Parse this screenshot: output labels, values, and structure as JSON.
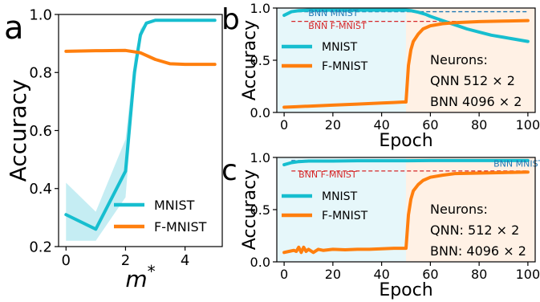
{
  "colors": {
    "mnist": "#17becf",
    "fmnist": "#ff7f0e",
    "bnn_mnist_ref": "#1f77b4",
    "bnn_fmnist_ref": "#d62728",
    "shade_blue": "#e6f7fa",
    "shade_orange": "#fff1e5",
    "band": "#b7e8f0"
  },
  "panels": {
    "a": {
      "letter": "a"
    },
    "b": {
      "letter": "b"
    },
    "c": {
      "letter": "c"
    }
  },
  "chart_data": [
    {
      "id": "a",
      "type": "line",
      "xlabel": "m*",
      "ylabel": "Accuracy",
      "xlim": [
        -0.25,
        5.25
      ],
      "ylim": [
        0.2,
        1.0
      ],
      "xticks": [
        0,
        2,
        4
      ],
      "yticks": [
        0.2,
        0.4,
        0.6,
        0.8,
        1.0
      ],
      "xtick_labels": [
        "0",
        "2",
        "4"
      ],
      "ytick_labels": [
        "0.2",
        "0.4",
        "0.6",
        "0.8",
        "1.0"
      ],
      "legend": [
        "MNIST",
        "F-MNIST"
      ],
      "legend_position": "lower-right",
      "series": [
        {
          "name": "MNIST",
          "color_key": "mnist",
          "x": [
            0,
            1,
            2,
            2.3,
            2.5,
            2.7,
            3,
            4,
            5
          ],
          "y": [
            0.31,
            0.26,
            0.46,
            0.8,
            0.93,
            0.97,
            0.98,
            0.98,
            0.98
          ],
          "band_upper": [
            0.42,
            0.32,
            0.57,
            0.85,
            0.95,
            0.975,
            0.98,
            0.98,
            0.98
          ],
          "band_lower": [
            0.22,
            0.22,
            0.37,
            0.75,
            0.91,
            0.965,
            0.98,
            0.98,
            0.98
          ]
        },
        {
          "name": "F-MNIST",
          "color_key": "fmnist",
          "x": [
            0,
            1,
            2,
            2.5,
            3,
            3.5,
            4,
            5
          ],
          "y": [
            0.873,
            0.875,
            0.876,
            0.868,
            0.845,
            0.83,
            0.828,
            0.828
          ]
        }
      ]
    },
    {
      "id": "b",
      "type": "line",
      "xlabel": "Epoch",
      "ylabel": "Accuracy",
      "xlim": [
        -3,
        103
      ],
      "ylim": [
        0.0,
        1.0
      ],
      "xticks": [
        0,
        20,
        40,
        60,
        80,
        100
      ],
      "yticks": [
        0.0,
        0.5,
        1.0
      ],
      "xtick_labels": [
        "0",
        "20",
        "40",
        "60",
        "80",
        "100"
      ],
      "ytick_labels": [
        "0.0",
        "0.5",
        "1.0"
      ],
      "shade_split": 50,
      "legend": [
        "MNIST",
        "F-MNIST"
      ],
      "legend_position": "center-left",
      "ref_lines": [
        {
          "label": "BNN MNIST",
          "y": 0.965,
          "color_key": "bnn_mnist_ref",
          "label_x": 4,
          "label_y": 0.945
        },
        {
          "label": "BNN F-MNIST",
          "y": 0.872,
          "color_key": "bnn_fmnist_ref",
          "label_x": 4,
          "label_y": 0.825
        }
      ],
      "annotation": [
        "Neurons:",
        "QNN 512 × 2",
        "BNN 4096 × 2"
      ],
      "series": [
        {
          "name": "MNIST",
          "color_key": "mnist",
          "x": [
            0,
            3,
            6,
            10,
            20,
            30,
            40,
            45,
            50,
            52,
            55,
            58,
            60,
            65,
            70,
            75,
            80,
            85,
            90,
            95,
            100
          ],
          "y": [
            0.93,
            0.965,
            0.975,
            0.98,
            0.98,
            0.98,
            0.98,
            0.98,
            0.98,
            0.975,
            0.96,
            0.94,
            0.92,
            0.88,
            0.84,
            0.8,
            0.77,
            0.74,
            0.72,
            0.7,
            0.68
          ]
        },
        {
          "name": "F-MNIST",
          "color_key": "fmnist",
          "x": [
            0,
            5,
            10,
            20,
            30,
            40,
            45,
            49,
            50,
            51,
            52,
            53,
            55,
            57,
            60,
            65,
            70,
            80,
            90,
            100
          ],
          "y": [
            0.05,
            0.055,
            0.06,
            0.07,
            0.08,
            0.09,
            0.095,
            0.1,
            0.1,
            0.45,
            0.6,
            0.68,
            0.75,
            0.8,
            0.83,
            0.85,
            0.86,
            0.87,
            0.875,
            0.88
          ]
        }
      ]
    },
    {
      "id": "c",
      "type": "line",
      "xlabel": "Epoch",
      "ylabel": "Accuracy",
      "xlim": [
        -3,
        103
      ],
      "ylim": [
        0.0,
        1.0
      ],
      "xticks": [
        0,
        20,
        40,
        60,
        80,
        100
      ],
      "yticks": [
        0.0,
        0.5,
        1.0
      ],
      "xtick_labels": [
        "0",
        "20",
        "40",
        "60",
        "80",
        "100"
      ],
      "ytick_labels": [
        "0.0",
        "0.5",
        "1.0"
      ],
      "shade_split": 50,
      "legend": [
        "MNIST",
        "F-MNIST"
      ],
      "legend_position": "center-left",
      "ref_lines": [
        {
          "label": "BNN MNIST",
          "y": 0.97,
          "color_key": "bnn_mnist_ref",
          "label_x": 80,
          "label_y": 0.935
        },
        {
          "label": "BNN F-MNIST",
          "y": 0.87,
          "color_key": "bnn_fmnist_ref",
          "label_x": 0,
          "label_y": 0.83
        }
      ],
      "annotation": [
        "Neurons:",
        "QNN: 512 × 2",
        "BNN: 4096 × 2"
      ],
      "series": [
        {
          "name": "MNIST",
          "color_key": "mnist",
          "x": [
            0,
            3,
            6,
            10,
            20,
            30,
            40,
            50,
            60,
            70,
            80,
            90,
            100
          ],
          "y": [
            0.93,
            0.95,
            0.96,
            0.965,
            0.965,
            0.968,
            0.968,
            0.968,
            0.97,
            0.97,
            0.97,
            0.97,
            0.97
          ]
        },
        {
          "name": "F-MNIST",
          "color_key": "fmnist",
          "x": [
            0,
            2,
            4,
            5,
            6,
            7,
            8,
            9,
            10,
            12,
            14,
            16,
            20,
            25,
            30,
            35,
            40,
            45,
            49,
            50,
            51,
            52,
            53,
            55,
            57,
            60,
            65,
            70,
            80,
            90,
            100
          ],
          "y": [
            0.09,
            0.1,
            0.11,
            0.1,
            0.14,
            0.09,
            0.14,
            0.1,
            0.12,
            0.09,
            0.12,
            0.11,
            0.12,
            0.115,
            0.12,
            0.12,
            0.125,
            0.13,
            0.13,
            0.13,
            0.45,
            0.6,
            0.68,
            0.74,
            0.78,
            0.81,
            0.83,
            0.845,
            0.85,
            0.855,
            0.86
          ]
        }
      ]
    }
  ]
}
